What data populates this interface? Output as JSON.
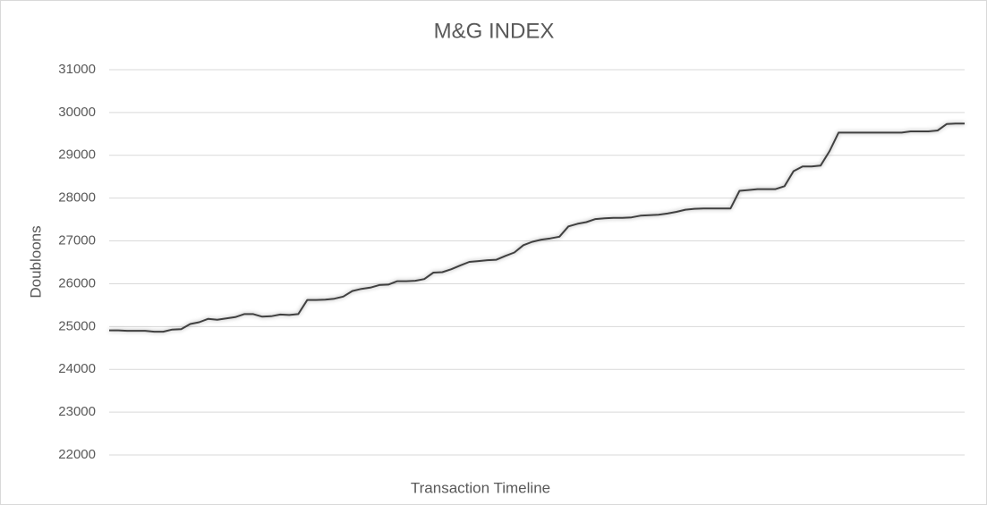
{
  "chart_data": {
    "type": "line",
    "title": "M&G INDEX",
    "x_label": "Transaction Timeline",
    "y_label": "Doubloons",
    "categories": [
      null,
      null,
      null,
      null,
      null,
      null,
      null,
      null,
      null,
      null,
      null,
      null,
      null,
      null,
      null,
      null,
      null,
      null,
      null,
      null,
      null,
      null,
      null,
      null,
      null,
      null,
      null,
      null,
      null,
      null,
      null,
      null,
      null,
      null,
      null,
      null,
      null,
      null,
      null,
      null,
      null,
      null,
      null,
      null,
      null,
      null,
      null,
      null,
      null,
      null,
      null,
      null,
      null,
      null,
      null,
      null,
      null,
      null,
      null,
      null,
      null,
      null,
      null,
      null,
      null,
      null,
      null,
      null,
      null,
      null,
      null,
      null,
      null,
      null,
      null,
      null,
      null,
      null,
      null,
      null,
      null,
      null,
      null,
      null,
      null,
      null,
      null,
      null,
      null,
      null,
      null,
      null,
      null,
      null,
      null,
      null
    ],
    "series": [
      {
        "name": "M&G INDEX",
        "color": "#404040",
        "values": [
          24910,
          24910,
          24900,
          24900,
          24900,
          24880,
          24880,
          24930,
          24940,
          25060,
          25100,
          25180,
          25160,
          25190,
          25220,
          25290,
          25290,
          25230,
          25240,
          25280,
          25270,
          25290,
          25620,
          25620,
          25630,
          25650,
          25700,
          25830,
          25880,
          25910,
          25970,
          25980,
          26060,
          26060,
          26070,
          26110,
          26260,
          26270,
          26340,
          26430,
          26510,
          26530,
          26550,
          26560,
          26650,
          26730,
          26900,
          26980,
          27030,
          27060,
          27100,
          27340,
          27400,
          27440,
          27510,
          27530,
          27540,
          27540,
          27550,
          27590,
          27600,
          27610,
          27640,
          27680,
          27730,
          27750,
          27760,
          27760,
          27760,
          27760,
          28170,
          28190,
          28210,
          28210,
          28210,
          28280,
          28630,
          28740,
          28740,
          28760,
          29100,
          29530,
          29530,
          29530,
          29530,
          29530,
          29530,
          29530,
          29530,
          29560,
          29560,
          29560,
          29580,
          29730,
          29740,
          29740
        ]
      }
    ],
    "ylim": [
      22000,
      31000
    ],
    "yticks": [
      22000,
      23000,
      24000,
      25000,
      26000,
      27000,
      28000,
      29000,
      30000,
      31000
    ],
    "grid": true
  }
}
